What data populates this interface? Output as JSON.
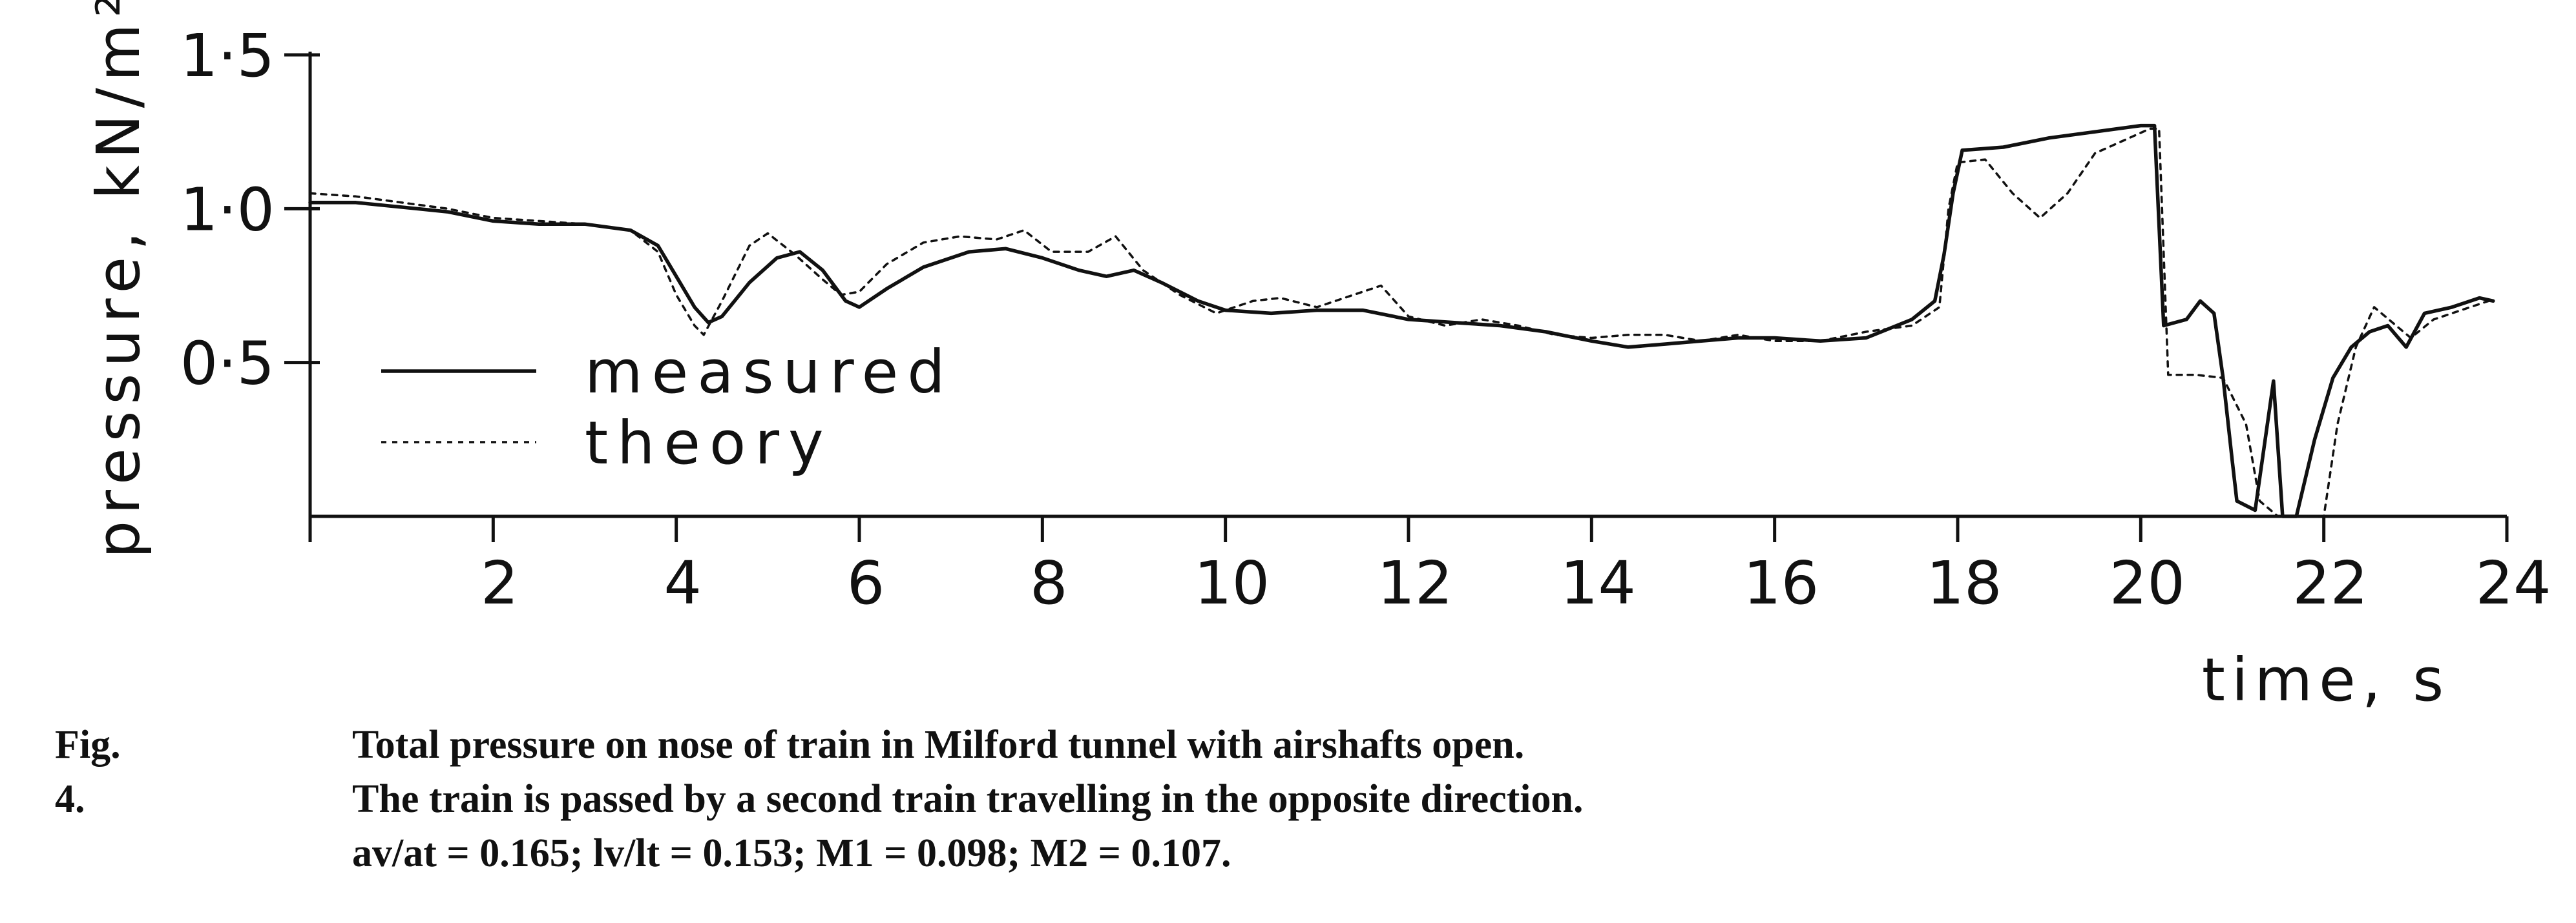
{
  "chart_data": {
    "type": "line",
    "xlabel": "time, s",
    "ylabel": "pressure, kN/m²",
    "xlim": [
      0,
      24
    ],
    "ylim": [
      0,
      1.5
    ],
    "x_ticks": [
      2,
      4,
      6,
      8,
      10,
      12,
      14,
      16,
      18,
      20,
      22,
      24
    ],
    "x_tick_labels": [
      "2",
      "4",
      "6",
      "8",
      "10",
      "12",
      "14",
      "16",
      "18",
      "20",
      "22",
      "24"
    ],
    "y_ticks": [
      0.5,
      1.0,
      1.5
    ],
    "y_tick_labels": [
      "0·5",
      "1·0",
      "1·5"
    ],
    "legend_position": "lower-left",
    "grid": false,
    "series": [
      {
        "name": "measured",
        "style": "solid",
        "points": [
          [
            0,
            1.02
          ],
          [
            0.5,
            1.02
          ],
          [
            1.5,
            0.99
          ],
          [
            2.0,
            0.96
          ],
          [
            2.5,
            0.95
          ],
          [
            3.0,
            0.95
          ],
          [
            3.5,
            0.93
          ],
          [
            3.8,
            0.88
          ],
          [
            4.0,
            0.78
          ],
          [
            4.2,
            0.68
          ],
          [
            4.35,
            0.63
          ],
          [
            4.5,
            0.65
          ],
          [
            4.8,
            0.76
          ],
          [
            5.1,
            0.84
          ],
          [
            5.35,
            0.86
          ],
          [
            5.6,
            0.8
          ],
          [
            5.85,
            0.7
          ],
          [
            6.0,
            0.68
          ],
          [
            6.3,
            0.74
          ],
          [
            6.7,
            0.81
          ],
          [
            7.2,
            0.86
          ],
          [
            7.6,
            0.87
          ],
          [
            8.0,
            0.84
          ],
          [
            8.4,
            0.8
          ],
          [
            8.7,
            0.78
          ],
          [
            9.0,
            0.8
          ],
          [
            9.3,
            0.76
          ],
          [
            9.7,
            0.7
          ],
          [
            10.0,
            0.67
          ],
          [
            10.5,
            0.66
          ],
          [
            11.0,
            0.67
          ],
          [
            11.5,
            0.67
          ],
          [
            12.0,
            0.64
          ],
          [
            12.5,
            0.63
          ],
          [
            13.0,
            0.62
          ],
          [
            13.5,
            0.6
          ],
          [
            14.0,
            0.57
          ],
          [
            14.4,
            0.55
          ],
          [
            14.8,
            0.56
          ],
          [
            15.2,
            0.57
          ],
          [
            15.6,
            0.58
          ],
          [
            16.0,
            0.58
          ],
          [
            16.5,
            0.57
          ],
          [
            17.0,
            0.58
          ],
          [
            17.5,
            0.64
          ],
          [
            17.75,
            0.7
          ],
          [
            17.85,
            0.85
          ],
          [
            17.95,
            1.05
          ],
          [
            18.05,
            1.19
          ],
          [
            18.5,
            1.2
          ],
          [
            19.0,
            1.23
          ],
          [
            19.5,
            1.25
          ],
          [
            20.0,
            1.27
          ],
          [
            20.15,
            1.27
          ],
          [
            20.25,
            0.62
          ],
          [
            20.5,
            0.64
          ],
          [
            20.65,
            0.7
          ],
          [
            20.8,
            0.66
          ],
          [
            20.9,
            0.45
          ],
          [
            21.0,
            0.18
          ],
          [
            21.05,
            0.05
          ],
          [
            21.25,
            0.02
          ],
          [
            21.45,
            0.44
          ],
          [
            21.55,
            0.0
          ],
          [
            21.7,
            0.0
          ],
          [
            21.9,
            0.25
          ],
          [
            22.1,
            0.45
          ],
          [
            22.3,
            0.55
          ],
          [
            22.5,
            0.6
          ],
          [
            22.7,
            0.62
          ],
          [
            22.9,
            0.55
          ],
          [
            23.1,
            0.66
          ],
          [
            23.4,
            0.68
          ],
          [
            23.7,
            0.71
          ],
          [
            23.85,
            0.7
          ]
        ]
      },
      {
        "name": "theory",
        "style": "dotted",
        "points": [
          [
            0,
            1.05
          ],
          [
            0.5,
            1.04
          ],
          [
            1.5,
            1.0
          ],
          [
            2.0,
            0.97
          ],
          [
            2.5,
            0.96
          ],
          [
            3.0,
            0.95
          ],
          [
            3.5,
            0.93
          ],
          [
            3.8,
            0.86
          ],
          [
            4.0,
            0.72
          ],
          [
            4.2,
            0.62
          ],
          [
            4.3,
            0.59
          ],
          [
            4.5,
            0.7
          ],
          [
            4.8,
            0.88
          ],
          [
            5.0,
            0.92
          ],
          [
            5.3,
            0.85
          ],
          [
            5.6,
            0.77
          ],
          [
            5.8,
            0.72
          ],
          [
            6.0,
            0.73
          ],
          [
            6.3,
            0.82
          ],
          [
            6.7,
            0.89
          ],
          [
            7.1,
            0.91
          ],
          [
            7.5,
            0.9
          ],
          [
            7.8,
            0.93
          ],
          [
            8.1,
            0.86
          ],
          [
            8.5,
            0.86
          ],
          [
            8.8,
            0.91
          ],
          [
            9.1,
            0.8
          ],
          [
            9.5,
            0.72
          ],
          [
            9.9,
            0.66
          ],
          [
            10.3,
            0.7
          ],
          [
            10.6,
            0.71
          ],
          [
            11.0,
            0.68
          ],
          [
            11.4,
            0.72
          ],
          [
            11.7,
            0.75
          ],
          [
            12.0,
            0.65
          ],
          [
            12.4,
            0.62
          ],
          [
            12.8,
            0.64
          ],
          [
            13.2,
            0.62
          ],
          [
            13.6,
            0.59
          ],
          [
            14.0,
            0.58
          ],
          [
            14.4,
            0.59
          ],
          [
            14.8,
            0.59
          ],
          [
            15.2,
            0.57
          ],
          [
            15.6,
            0.59
          ],
          [
            16.0,
            0.57
          ],
          [
            16.5,
            0.57
          ],
          [
            17.0,
            0.6
          ],
          [
            17.5,
            0.62
          ],
          [
            17.8,
            0.68
          ],
          [
            17.9,
            1.0
          ],
          [
            18.0,
            1.15
          ],
          [
            18.3,
            1.16
          ],
          [
            18.6,
            1.05
          ],
          [
            18.9,
            0.97
          ],
          [
            19.2,
            1.05
          ],
          [
            19.5,
            1.18
          ],
          [
            19.8,
            1.22
          ],
          [
            20.1,
            1.26
          ],
          [
            20.2,
            1.26
          ],
          [
            20.3,
            0.46
          ],
          [
            20.6,
            0.46
          ],
          [
            20.9,
            0.45
          ],
          [
            21.15,
            0.3
          ],
          [
            21.3,
            0.05
          ],
          [
            21.5,
            0.0
          ],
          [
            22.0,
            0.0
          ],
          [
            22.15,
            0.3
          ],
          [
            22.35,
            0.55
          ],
          [
            22.55,
            0.68
          ],
          [
            22.75,
            0.63
          ],
          [
            22.95,
            0.58
          ],
          [
            23.2,
            0.64
          ],
          [
            23.5,
            0.67
          ],
          [
            23.8,
            0.7
          ]
        ]
      }
    ]
  },
  "caption": {
    "label": "Fig. 4.",
    "line1": "Total pressure on nose of train in Milford tunnel with airshafts open.",
    "line2": "The train is passed by a second train travelling in the opposite direction.",
    "line3": "av/at = 0.165;  lv/lt = 0.153;  M1 = 0.098;  M2 = 0.107."
  }
}
